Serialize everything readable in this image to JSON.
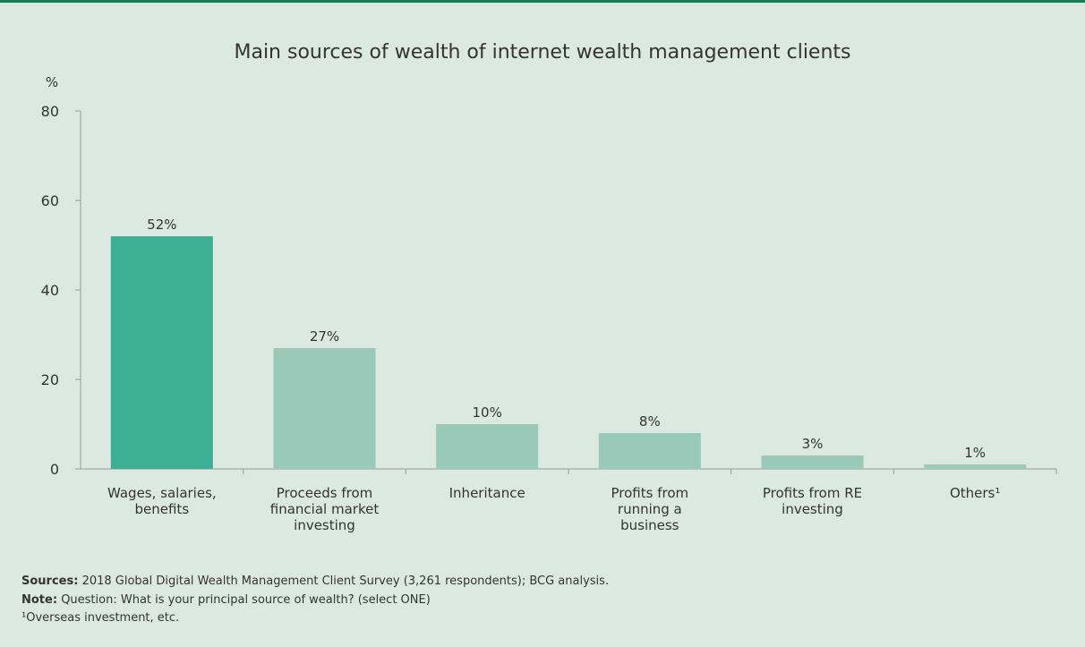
{
  "chart_data": {
    "type": "bar",
    "title": "Main sources of wealth of internet wealth management clients",
    "y_label": "%",
    "categories": [
      "Wages, salaries, benefits",
      "Proceeds from financial market investing",
      "Inheritance",
      "Profits from running a business",
      "Profits from RE investing",
      "Others¹"
    ],
    "values": [
      52,
      27,
      10,
      8,
      3,
      1
    ],
    "value_labels": [
      "52%",
      "27%",
      "10%",
      "8%",
      "3%",
      "1%"
    ],
    "colors": [
      "#3daf92",
      "#98c9b9",
      "#98c9b9",
      "#98c9b9",
      "#98c9b9",
      "#98c9b9"
    ],
    "ylim": [
      0,
      80
    ],
    "yticks": [
      0,
      20,
      40,
      60,
      80
    ],
    "grid": false,
    "notes": [
      {
        "label": "Sources:",
        "text": "2018 Global Digital Wealth Management Client Survey (3,261 respondents); BCG analysis."
      },
      {
        "label": "Note:",
        "text": "Question: What is your principal source of wealth? (select ONE)"
      }
    ],
    "footnote": "¹Overseas investment, etc."
  }
}
